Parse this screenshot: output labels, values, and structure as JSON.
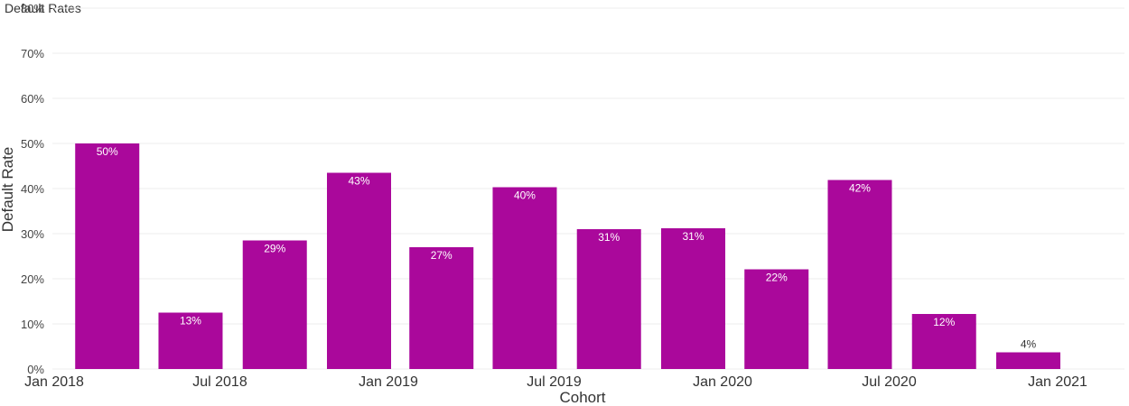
{
  "chart_data": {
    "type": "bar",
    "title": "Default Rates",
    "xlabel": "Cohort",
    "ylabel": "Default Rate",
    "ylim": [
      0,
      0.8
    ],
    "yticks": [
      0,
      0.1,
      0.2,
      0.3,
      0.4,
      0.5,
      0.6,
      0.7,
      0.8
    ],
    "ytick_labels": [
      "0%",
      "10%",
      "20%",
      "30%",
      "40%",
      "50%",
      "60%",
      "70%",
      "80%"
    ],
    "xlim": [
      "2018-01-01",
      "2021-03-15"
    ],
    "x_ticks": [
      "2018-01-01",
      "2018-07-01",
      "2019-01-01",
      "2019-07-01",
      "2020-01-01",
      "2020-07-01",
      "2021-01-01"
    ],
    "x_tick_labels": [
      "Jan 2018",
      "Jul 2018",
      "Jan 2019",
      "Jul 2019",
      "Jan 2020",
      "Jul 2020",
      "Jan 2021"
    ],
    "categories": [
      "2018-04-01",
      "2018-07-01",
      "2018-10-01",
      "2019-01-01",
      "2019-04-01",
      "2019-07-01",
      "2019-10-01",
      "2020-01-01",
      "2020-04-01",
      "2020-07-01",
      "2020-10-01",
      "2021-01-01"
    ],
    "values": [
      0.5,
      0.125,
      0.285,
      0.435,
      0.27,
      0.403,
      0.31,
      0.312,
      0.221,
      0.419,
      0.122,
      0.037
    ],
    "data_labels": [
      "50%",
      "13%",
      "29%",
      "43%",
      "27%",
      "40%",
      "31%",
      "31%",
      "22%",
      "42%",
      "12%",
      "4%"
    ],
    "grid": true,
    "colors": {
      "bar": "#aa089b",
      "grid": "#ececec",
      "label_inside": "#ffffff",
      "label_outside": "#333333"
    }
  }
}
